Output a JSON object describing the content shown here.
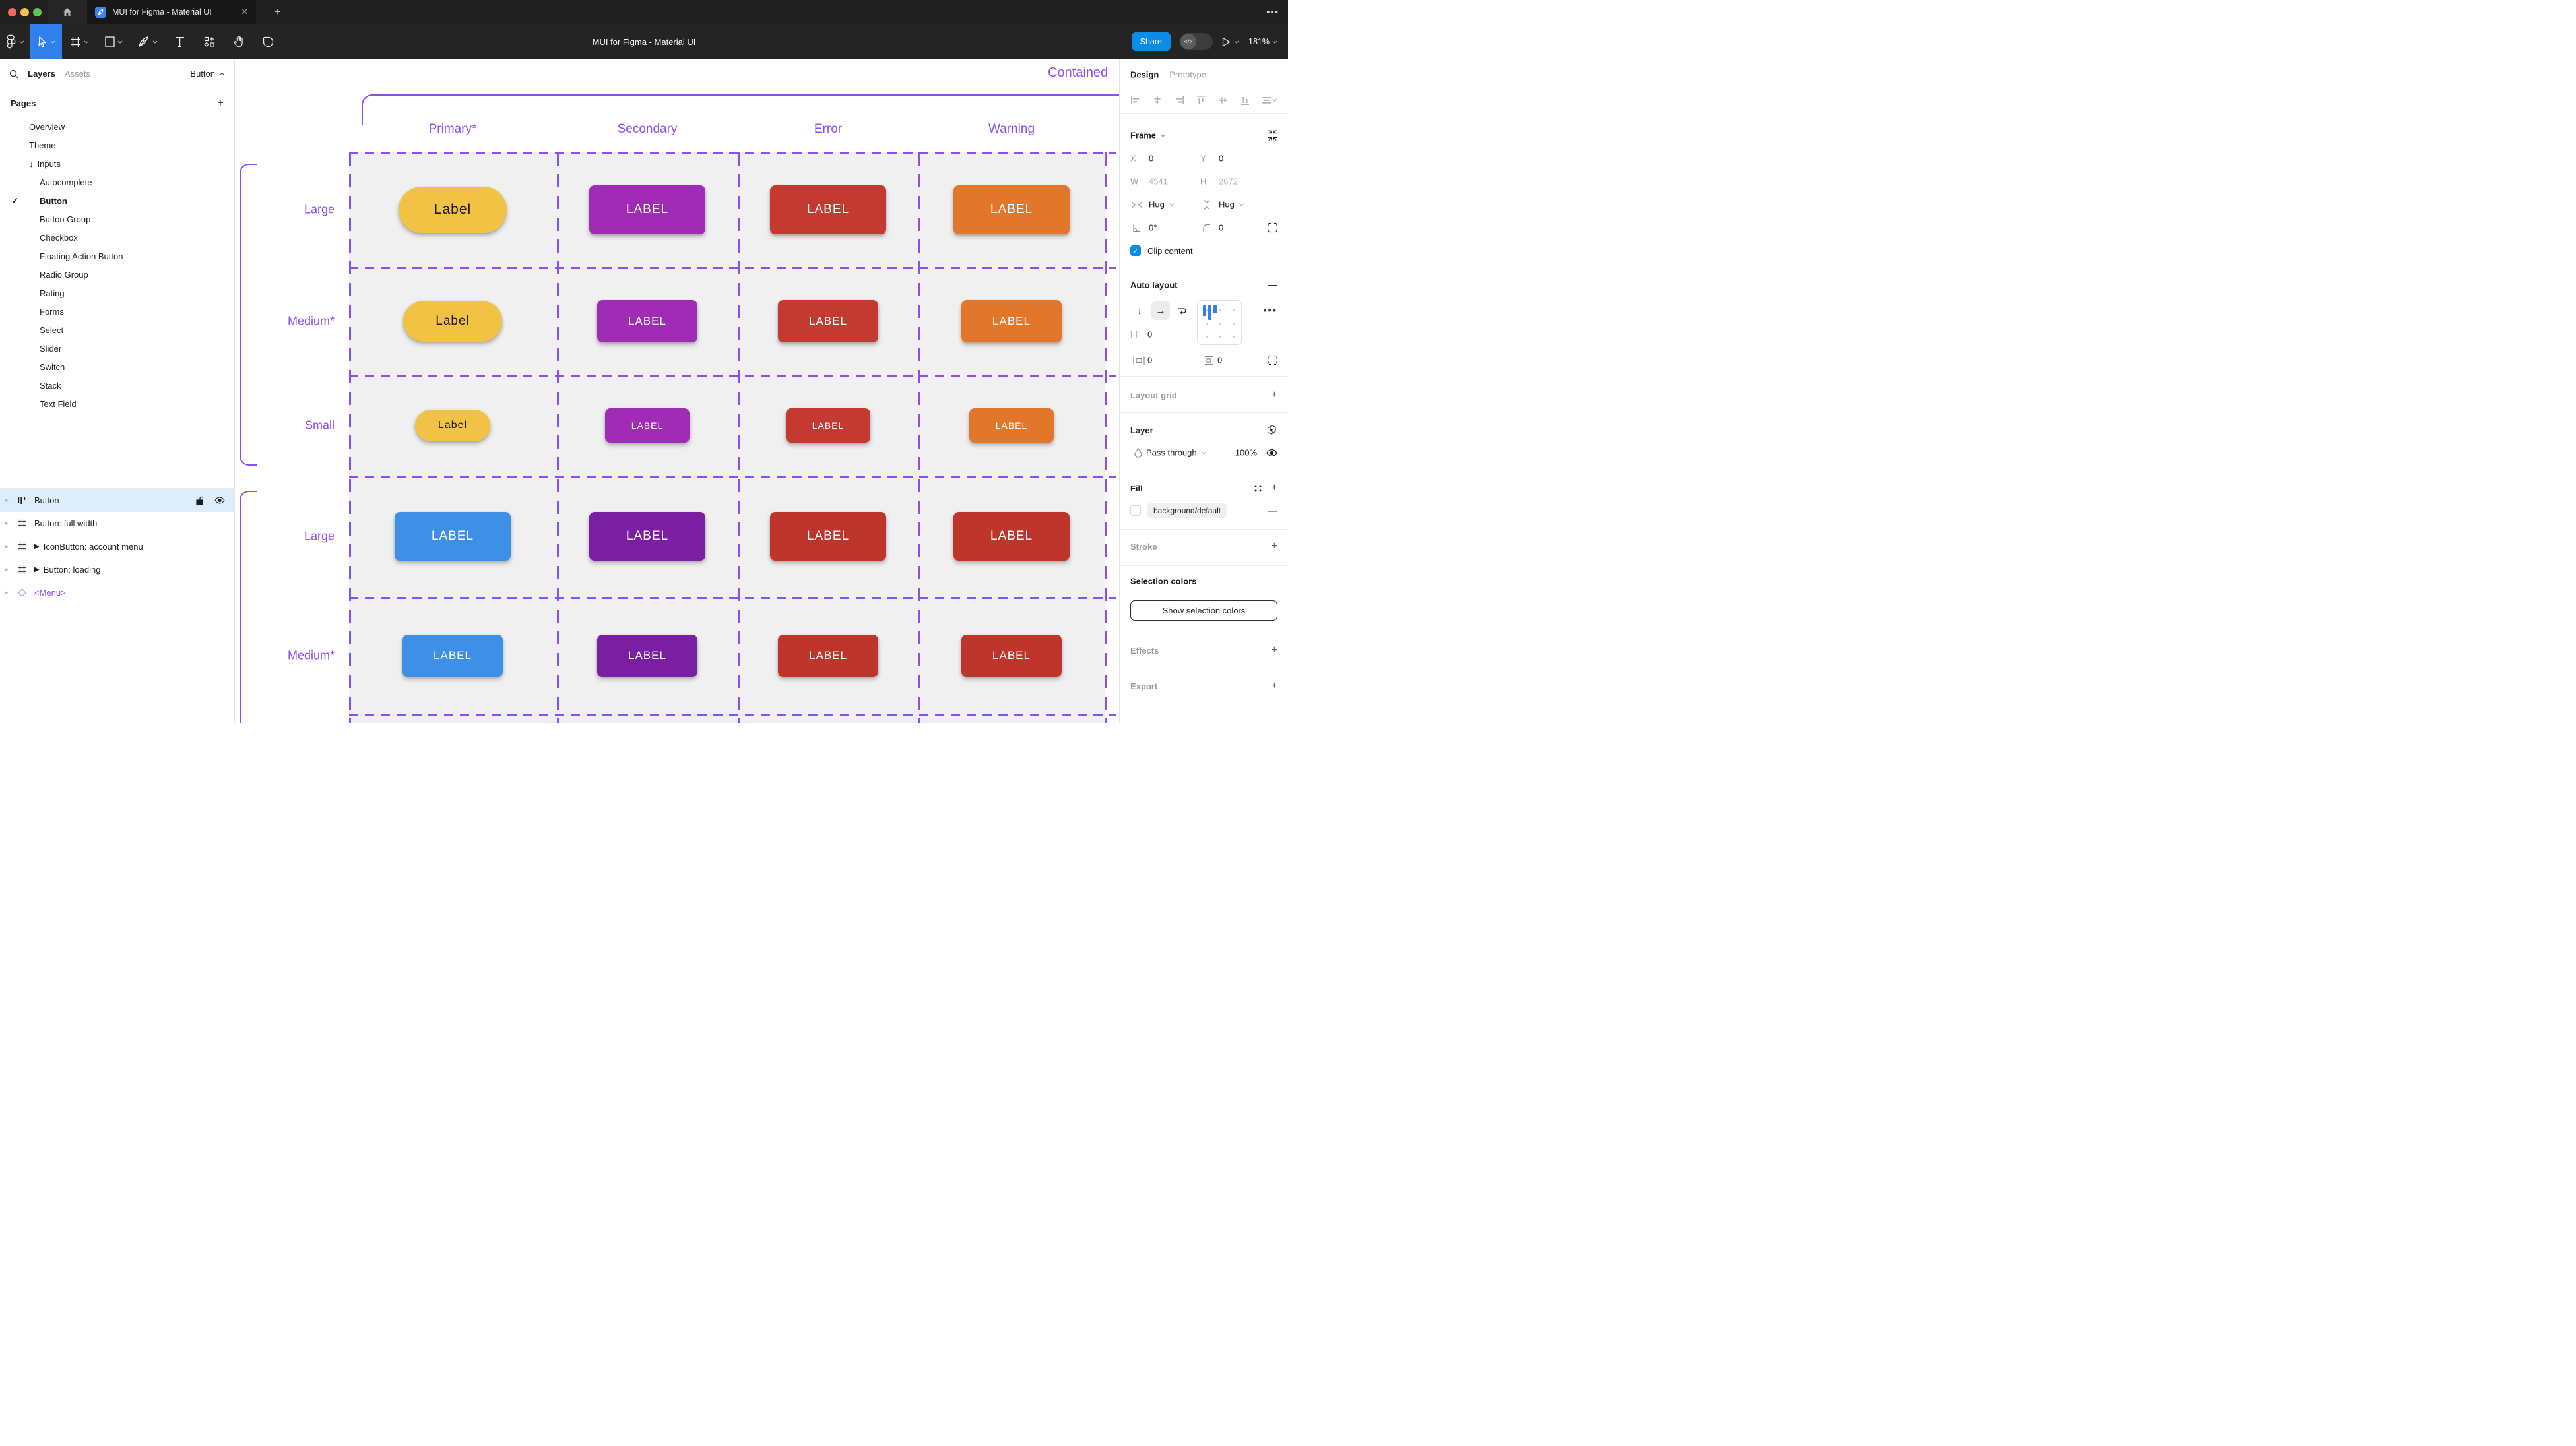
{
  "window": {
    "tab_title": "MUI for Figma - Material UI",
    "close_icon": "✕",
    "new_tab_icon": "+",
    "more_icon": "•••",
    "doc_title": "MUI for Figma - Material UI",
    "share_label": "Share",
    "dev_toggle_label": "</>",
    "zoom_level": "181%"
  },
  "sidebar": {
    "tab_layers": "Layers",
    "tab_assets": "Assets",
    "selector_label": "Button",
    "pages_title": "Pages",
    "add_page_icon": "+",
    "pages": [
      {
        "label": "Overview",
        "indent": 0
      },
      {
        "label": "Theme",
        "indent": 0
      },
      {
        "label": "Inputs",
        "indent": 0,
        "prefix": "↓"
      },
      {
        "label": "Autocomplete",
        "indent": 1
      },
      {
        "label": "Button",
        "indent": 1,
        "selected": true,
        "check": "✓"
      },
      {
        "label": "Button Group",
        "indent": 1
      },
      {
        "label": "Checkbox",
        "indent": 1
      },
      {
        "label": "Floating Action Button",
        "indent": 1
      },
      {
        "label": "Radio Group",
        "indent": 1
      },
      {
        "label": "Rating",
        "indent": 1
      },
      {
        "label": "Forms",
        "indent": 1
      },
      {
        "label": "Select",
        "indent": 1
      },
      {
        "label": "Slider",
        "indent": 1
      },
      {
        "label": "Switch",
        "indent": 1
      },
      {
        "label": "Stack",
        "indent": 1
      },
      {
        "label": "Text Field",
        "indent": 1
      }
    ],
    "layers": [
      {
        "label": "Button",
        "icon": "autolayout",
        "selected": true
      },
      {
        "label": "Button: full width",
        "icon": "frame"
      },
      {
        "label": "IconButton: account menu",
        "icon": "frame",
        "play": "▶"
      },
      {
        "label": "Button: loading",
        "icon": "frame",
        "play": "▶"
      },
      {
        "label": "<Menu>",
        "icon": "instance",
        "purple": true
      }
    ]
  },
  "canvas": {
    "frame_title": "Contained",
    "accent_color": "#8B4FEF",
    "columns": [
      "Primary*",
      "Secondary",
      "Error",
      "Warning"
    ],
    "rows": [
      {
        "label": "Large",
        "size": "large"
      },
      {
        "label": "Medium*",
        "size": "medium"
      },
      {
        "label": "Small",
        "size": "small"
      },
      {
        "label": "Large",
        "size": "large"
      },
      {
        "label": "Medium*",
        "size": "medium"
      }
    ],
    "buttons": [
      [
        {
          "text": "Label",
          "color": "#F2C245",
          "text_color": "#1A1A1A",
          "pill": true
        },
        {
          "text": "LABEL",
          "color": "#A02BB5",
          "text_color": "#FFFFFF"
        },
        {
          "text": "LABEL",
          "color": "#C43A31",
          "text_color": "#FFFFFF"
        },
        {
          "text": "LABEL",
          "color": "#E2772C",
          "text_color": "#FFFFFF"
        }
      ],
      [
        {
          "text": "Label",
          "color": "#F2C245",
          "text_color": "#1A1A1A",
          "pill": true
        },
        {
          "text": "LABEL",
          "color": "#A02BB5",
          "text_color": "#FFFFFF"
        },
        {
          "text": "LABEL",
          "color": "#C43A31",
          "text_color": "#FFFFFF"
        },
        {
          "text": "LABEL",
          "color": "#E2772C",
          "text_color": "#FFFFFF"
        }
      ],
      [
        {
          "text": "Label",
          "color": "#F2C245",
          "text_color": "#1A1A1A",
          "pill": true
        },
        {
          "text": "LABEL",
          "color": "#A02BB5",
          "text_color": "#FFFFFF"
        },
        {
          "text": "LABEL",
          "color": "#C43A31",
          "text_color": "#FFFFFF"
        },
        {
          "text": "LABEL",
          "color": "#E2772C",
          "text_color": "#FFFFFF"
        }
      ],
      [
        {
          "text": "LABEL",
          "color": "#3E8FE8",
          "text_color": "#FFFFFF"
        },
        {
          "text": "LABEL",
          "color": "#7B1FA2",
          "text_color": "#FFFFFF"
        },
        {
          "text": "LABEL",
          "color": "#BE352C",
          "text_color": "#FFFFFF"
        },
        {
          "text": "LABEL",
          "color": "#BE352C",
          "text_color": "#FFFFFF"
        }
      ],
      [
        {
          "text": "LABEL",
          "color": "#3E8FE8",
          "text_color": "#FFFFFF"
        },
        {
          "text": "LABEL",
          "color": "#7B1FA2",
          "text_color": "#FFFFFF"
        },
        {
          "text": "LABEL",
          "color": "#BE352C",
          "text_color": "#FFFFFF"
        },
        {
          "text": "LABEL",
          "color": "#BE352C",
          "text_color": "#FFFFFF"
        }
      ]
    ]
  },
  "panel": {
    "tab_design": "Design",
    "tab_prototype": "Prototype",
    "frame": {
      "title": "Frame",
      "x_label": "X",
      "x": "0",
      "y_label": "Y",
      "y": "0",
      "w_label": "W",
      "w": "4541",
      "h_label": "H",
      "h": "2672",
      "hug_h": "Hug",
      "hug_v": "Hug",
      "rotation": "0°",
      "corner_radius": "0",
      "clip_label": "Clip content"
    },
    "auto_layout": {
      "title": "Auto layout",
      "gap": "0",
      "padding_h": "0",
      "padding_v": "0"
    },
    "layout_grid_title": "Layout grid",
    "layer": {
      "title": "Layer",
      "blend_mode": "Pass through",
      "opacity": "100%"
    },
    "fill": {
      "title": "Fill",
      "token": "background/default"
    },
    "stroke_title": "Stroke",
    "selection_colors": {
      "title": "Selection colors",
      "button_label": "Show selection colors"
    },
    "effects_title": "Effects",
    "export_title": "Export"
  }
}
